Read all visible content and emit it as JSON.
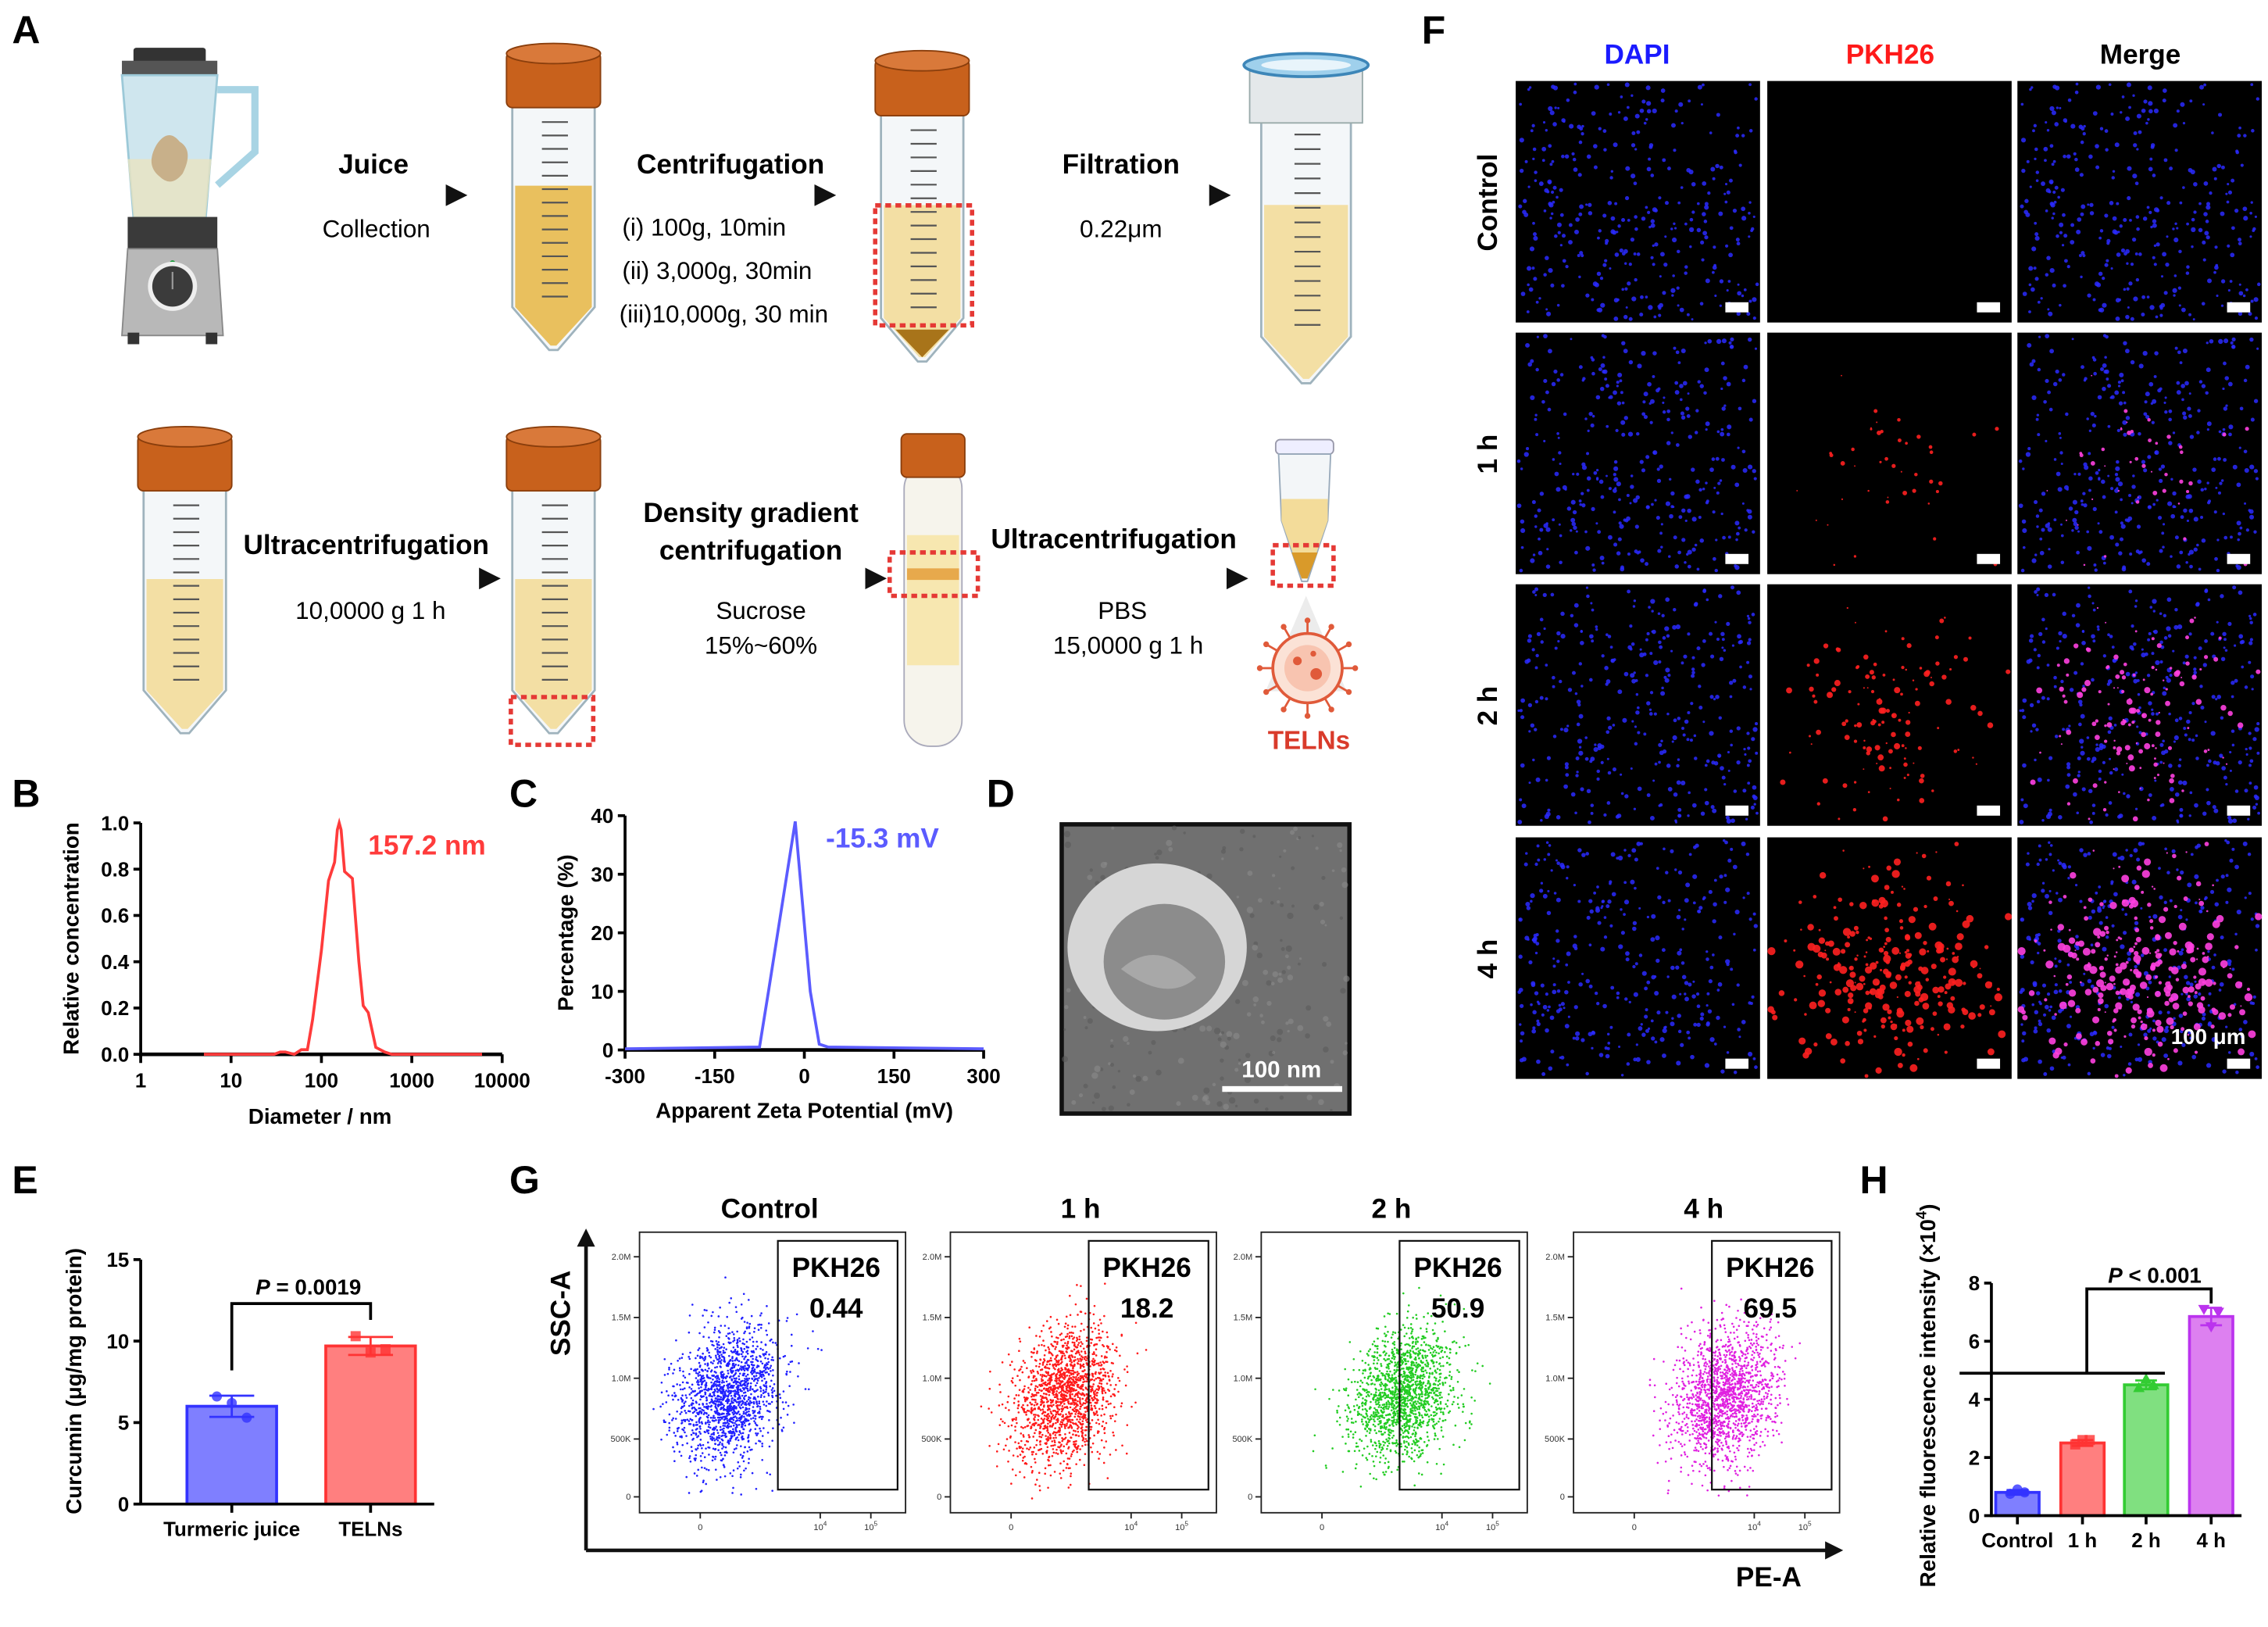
{
  "panel_labels": {
    "A": "A",
    "B": "B",
    "C": "C",
    "D": "D",
    "E": "E",
    "F": "F",
    "G": "G",
    "H": "H"
  },
  "workflow": {
    "step1": {
      "title": "Juice",
      "subtitle": "Collection"
    },
    "step2": {
      "title": "Centrifugation",
      "conditions": [
        "(i) 100g, 10min",
        "(ii) 3,000g, 30min",
        "(iii)10,000g, 30 min"
      ]
    },
    "step3": {
      "title": "Filtration",
      "subtitle": "0.22μm"
    },
    "step4": {
      "title": "Ultracentrifugation",
      "subtitle": "10,0000 g 1 h"
    },
    "step5": {
      "title_line1": "Density gradient",
      "title_line2": "centrifugation",
      "subtitle_line1": "Sucrose",
      "subtitle_line2": "15%~60%"
    },
    "step6": {
      "title": "Ultracentrifugation",
      "subtitle_line1": "PBS",
      "subtitle_line2": "15,0000 g 1 h"
    },
    "product": "TELNs",
    "colors": {
      "cap": "#c8611c",
      "liquid": "#e8b94c",
      "liquid_light": "#f3dc9a",
      "highlight_box": "#e53935"
    }
  },
  "tem": {
    "scale_bar": "100 nm"
  },
  "microscopy": {
    "columns": [
      {
        "label": "DAPI",
        "color": "#1a1aff"
      },
      {
        "label": "PKH26",
        "color": "#ff1a1a"
      },
      {
        "label": "Merge",
        "color": "#000000"
      }
    ],
    "rows": [
      "Control",
      "1 h",
      "2 h",
      "4 h"
    ],
    "scale_bar": "100 μm"
  },
  "chart_data": [
    {
      "panel": "B",
      "type": "line",
      "xscale": "log",
      "xlabel": "Diameter / nm",
      "ylabel": "Relative concentration",
      "xlim": [
        1,
        10000
      ],
      "ylim": [
        0,
        1.0
      ],
      "xticks": [
        "1",
        "10",
        "100",
        "1000",
        "10000"
      ],
      "yticks": [
        "0.0",
        "0.2",
        "0.4",
        "0.6",
        "0.8",
        "1.0"
      ],
      "annotation": "157.2 nm",
      "color": "#ff3b3b",
      "x": [
        5,
        15,
        30,
        35,
        40,
        50,
        60,
        70,
        80,
        100,
        120,
        140,
        150,
        157.2,
        165,
        180,
        220,
        260,
        290,
        330,
        400,
        500,
        600,
        1000,
        6000
      ],
      "y": [
        0,
        0,
        0,
        0.01,
        0.01,
        0,
        0.02,
        0.02,
        0.15,
        0.45,
        0.75,
        0.83,
        0.97,
        1.0,
        0.97,
        0.79,
        0.76,
        0.4,
        0.21,
        0.18,
        0.03,
        0.01,
        0,
        0,
        0
      ]
    },
    {
      "panel": "C",
      "type": "line",
      "xlabel": "Apparent Zeta Potential (mV)",
      "ylabel": "Percentage (%)",
      "xlim": [
        -300,
        300
      ],
      "ylim": [
        0,
        40
      ],
      "xticks": [
        "-300",
        "-150",
        "0",
        "150",
        "300"
      ],
      "yticks": [
        "0",
        "10",
        "20",
        "30",
        "40"
      ],
      "annotation": "-15.3 mV",
      "color": "#5b5bff",
      "x": [
        -300,
        -75,
        -60,
        -15.3,
        10,
        25,
        40,
        300
      ],
      "y": [
        0.2,
        0.5,
        10,
        39,
        10,
        1,
        0.5,
        0.2
      ]
    },
    {
      "panel": "E",
      "type": "bar",
      "ylabel": "Curcumin (μg/mg protein)",
      "categories": [
        "Turmeric juice",
        "TELNs"
      ],
      "values": [
        6.0,
        9.7
      ],
      "errors": [
        0.65,
        0.55
      ],
      "points": [
        [
          6.6,
          6.2,
          5.3
        ],
        [
          10.3,
          9.3,
          9.5
        ]
      ],
      "colors": [
        {
          "fill": "#7f7fff",
          "stroke": "#3333ff"
        },
        {
          "fill": "#ff7f7f",
          "stroke": "#ff3333"
        }
      ],
      "ylim": [
        0,
        15
      ],
      "yticks": [
        "0",
        "5",
        "10",
        "15"
      ],
      "significance": {
        "p_symbol": "P",
        "p_text": " = 0.0019"
      }
    },
    {
      "panel": "H",
      "type": "bar",
      "ylabel_main": "Relative fluorescence intensity (×10",
      "ylabel_sup": "4",
      "ylabel_end": ")",
      "categories": [
        "Control",
        "1 h",
        "2 h",
        "4 h"
      ],
      "values": [
        0.8,
        2.5,
        4.5,
        6.85
      ],
      "errors": [
        0.08,
        0.1,
        0.15,
        0.3
      ],
      "points": [
        [
          0.75,
          0.9,
          0.8
        ],
        [
          2.45,
          2.6,
          2.6
        ],
        [
          4.4,
          4.7,
          4.5
        ],
        [
          7.1,
          6.5,
          7.0
        ]
      ],
      "colors": [
        {
          "fill": "#7f7fff",
          "stroke": "#3333ff"
        },
        {
          "fill": "#ff7f7f",
          "stroke": "#ff3333"
        },
        {
          "fill": "#80e080",
          "stroke": "#33cc33"
        },
        {
          "fill": "#dd80f0",
          "stroke": "#bb33ee"
        }
      ],
      "ylim": [
        0,
        8
      ],
      "yticks": [
        "0",
        "2",
        "4",
        "6",
        "8"
      ],
      "significance": {
        "p_symbol": "P",
        "p_text": " < 0.001"
      }
    },
    {
      "panel": "G",
      "type": "scatter",
      "xlabel": "PE-A",
      "ylabel": "SSC-A",
      "gate_label": "PKH26",
      "panels": [
        {
          "title": "Control",
          "gate_percent": "0.44",
          "color": "#2020ff"
        },
        {
          "title": "1 h",
          "gate_percent": "18.2",
          "color": "#ff1a1a"
        },
        {
          "title": "2 h",
          "gate_percent": "50.9",
          "color": "#22cc22"
        },
        {
          "title": "4 h",
          "gate_percent": "69.5",
          "color": "#e020e0"
        }
      ],
      "yticks": [
        "2.0M",
        "1.5M",
        "1.0M",
        "500K",
        "0"
      ],
      "xticks": [
        {
          "base": "0",
          "exp": ""
        },
        {
          "base": "10",
          "exp": "4"
        },
        {
          "base": "10",
          "exp": "5"
        }
      ]
    }
  ]
}
